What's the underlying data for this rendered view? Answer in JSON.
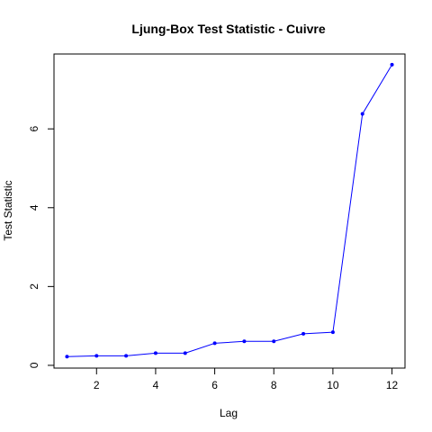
{
  "chart_data": {
    "type": "line",
    "title": "Ljung-Box Test Statistic - Cuivre",
    "xlabel": "Lag",
    "ylabel": "Test Statistic",
    "x": [
      1,
      2,
      3,
      4,
      5,
      6,
      7,
      8,
      9,
      10,
      11,
      12
    ],
    "series": [
      {
        "values": [
          0.22,
          0.24,
          0.24,
          0.31,
          0.31,
          0.56,
          0.61,
          0.61,
          0.8,
          0.84,
          6.38,
          7.63
        ],
        "color": "#0000ff"
      }
    ],
    "xticks": [
      "2",
      "4",
      "6",
      "8",
      "10",
      "12"
    ],
    "yticks": [
      "0",
      "2",
      "4",
      "6"
    ],
    "xlim": [
      0.56,
      12.44
    ],
    "ylim": [
      -0.07,
      7.9
    ],
    "grid": false
  }
}
